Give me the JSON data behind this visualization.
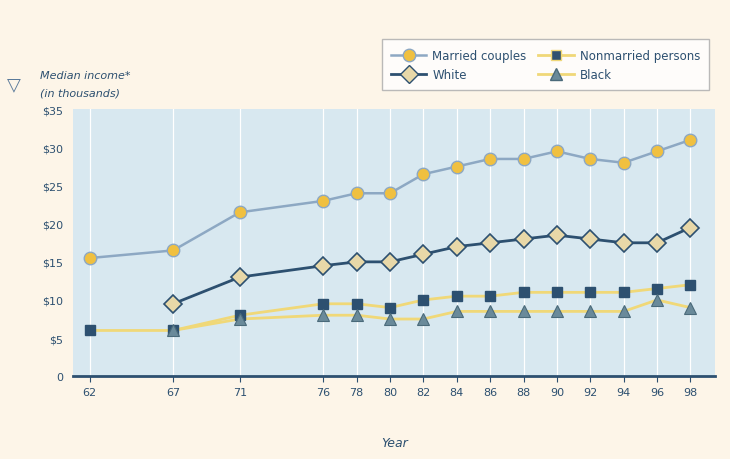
{
  "years": [
    62,
    67,
    71,
    76,
    78,
    80,
    82,
    84,
    86,
    88,
    90,
    92,
    94,
    96,
    98
  ],
  "married_couples": [
    15.5,
    16.5,
    21.5,
    23.0,
    24.0,
    24.0,
    26.5,
    27.5,
    28.5,
    28.5,
    29.5,
    28.5,
    28.0,
    29.5,
    31.0
  ],
  "white": [
    null,
    9.5,
    13.0,
    14.5,
    15.0,
    15.0,
    16.0,
    17.0,
    17.5,
    18.0,
    18.5,
    18.0,
    17.5,
    17.5,
    19.5
  ],
  "nonmarried_persons": [
    6.0,
    6.0,
    8.0,
    9.5,
    9.5,
    9.0,
    10.0,
    10.5,
    10.5,
    11.0,
    11.0,
    11.0,
    11.0,
    11.5,
    12.0
  ],
  "black": [
    null,
    6.0,
    7.5,
    8.0,
    8.0,
    7.5,
    7.5,
    8.5,
    8.5,
    8.5,
    8.5,
    8.5,
    8.5,
    10.0,
    9.0
  ],
  "married_line_color": "#8da8c3",
  "married_marker_face": "#f0c040",
  "married_marker_edge": "#8da8c3",
  "white_line_color": "#2d5070",
  "white_marker_face": "#e8d8a8",
  "white_marker_edge": "#2d5070",
  "nonmarried_line_color": "#f0d878",
  "nonmarried_marker_face": "#2d5070",
  "black_line_color": "#f0d878",
  "black_marker_face": "#6a8a9a",
  "black_marker_edge": "#4a6a7a",
  "plot_bg": "#d8e8f0",
  "outer_bg": "#fdf5e8",
  "bottom_bg": "#fdf5e8",
  "grid_color": "#ffffff",
  "spine_color": "#2d5070",
  "ylim": [
    0,
    35
  ],
  "yticks": [
    0,
    5,
    10,
    15,
    20,
    25,
    30,
    35
  ],
  "ytick_labels": [
    "0",
    "$5",
    "$10",
    "$15",
    "$20",
    "$25",
    "$30",
    "$35"
  ],
  "xlabel": "Year",
  "ylabel_line1": "Median income*",
  "ylabel_line2": "(in thousands)",
  "legend_entries": [
    "Married couples",
    "White",
    "Nonmarried persons",
    "Black"
  ],
  "legend_border_color": "#aaaaaa"
}
